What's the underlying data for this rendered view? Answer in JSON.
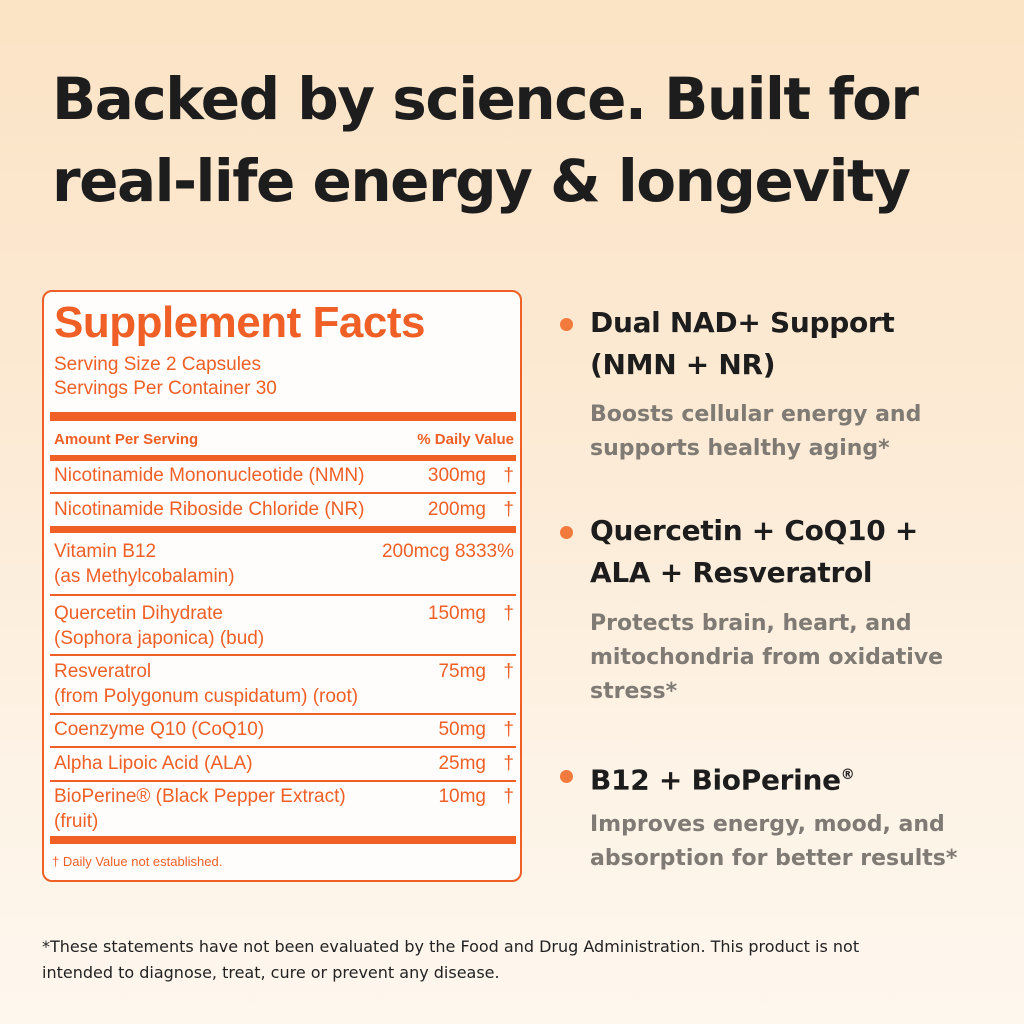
{
  "headline": {
    "line1": "Backed by science. Built for",
    "line2": "real-life energy & longevity"
  },
  "supplement_facts": {
    "title": "Supplement Facts",
    "serving_size": "Serving Size 2 Capsules",
    "servings_per_container": "Servings Per Container 30",
    "header_amount": "Amount Per Serving",
    "header_dv": "% Daily Value",
    "rows": [
      {
        "name": "Nicotinamide Mononucleotide (NMN)",
        "amount": "300mg",
        "dv": "†"
      },
      {
        "name": "Nicotinamide Riboside Chloride (NR)",
        "amount": "200mg",
        "dv": "†"
      },
      {
        "name": "Vitamin B12",
        "name2": "(as Methylcobalamin)",
        "amount": "200mcg 8333%",
        "dv": ""
      },
      {
        "name": "Quercetin Dihydrate",
        "name2": "(Sophora japonica) (bud)",
        "amount": "150mg",
        "dv": "†"
      },
      {
        "name": "Resveratrol",
        "name2": "(from Polygonum cuspidatum) (root)",
        "amount": "75mg",
        "dv": "†"
      },
      {
        "name": "Coenzyme Q10 (CoQ10)",
        "amount": "50mg",
        "dv": "†"
      },
      {
        "name": "Alpha Lipoic Acid (ALA)",
        "amount": "25mg",
        "dv": "†"
      },
      {
        "name": "BioPerine® (Black Pepper Extract)",
        "name2": "(fruit)",
        "amount": "10mg",
        "dv": "†"
      }
    ],
    "footnote": "† Daily Value not established."
  },
  "benefits": [
    {
      "title_line1": "Dual NAD+ Support",
      "title_line2": "(NMN + NR)",
      "desc_line1": "Boosts cellular energy and",
      "desc_line2": "supports healthy aging*"
    },
    {
      "title_line1": "Quercetin + CoQ10 +",
      "title_line2": "ALA + Resveratrol",
      "desc_line1": "Protects brain, heart, and",
      "desc_line2": "mitochondria from oxidative",
      "desc_line3": "stress*"
    },
    {
      "title_line1": "B12 + BioPerine",
      "title_mark": "®",
      "desc_line1": "Improves energy, mood, and",
      "desc_line2": "absorption for better results*"
    }
  ],
  "disclaimer": {
    "line1": "*These statements have not been evaluated by the Food and Drug Administration. This product is not",
    "line2": "intended to diagnose, treat, cure or prevent any disease."
  },
  "colors": {
    "accent": "#ef5f26",
    "bullet": "#f27a3d",
    "text_dark": "#1d1d1d",
    "text_muted": "#7f7a74"
  }
}
